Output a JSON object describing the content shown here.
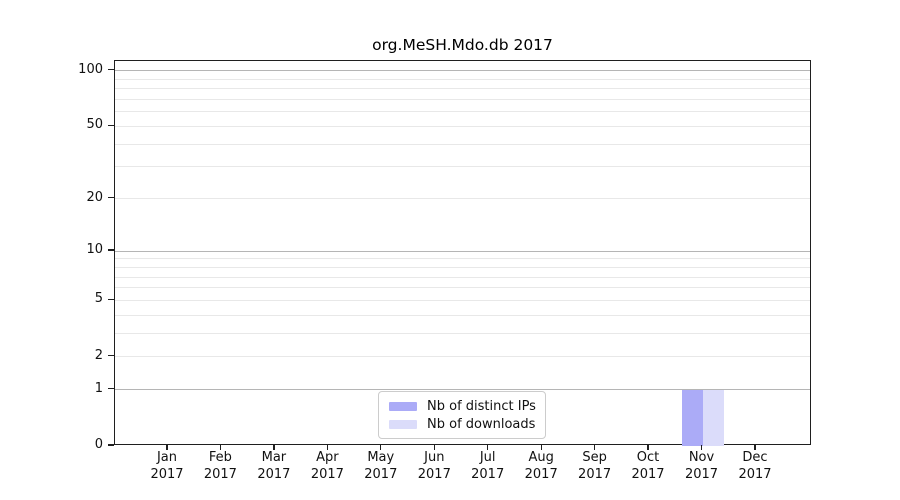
{
  "chart_data": {
    "type": "bar",
    "title": "org.MeSH.Mdo.db 2017",
    "categories": [
      "Jan 2017",
      "Feb 2017",
      "Mar 2017",
      "Apr 2017",
      "May 2017",
      "Jun 2017",
      "Jul 2017",
      "Aug 2017",
      "Sep 2017",
      "Oct 2017",
      "Nov 2017",
      "Dec 2017"
    ],
    "months": [
      "Jan",
      "Feb",
      "Mar",
      "Apr",
      "May",
      "Jun",
      "Jul",
      "Aug",
      "Sep",
      "Oct",
      "Nov",
      "Dec"
    ],
    "year_label": "2017",
    "series": [
      {
        "name": "Nb of distinct IPs",
        "color": "#ababf7",
        "values": [
          0,
          0,
          0,
          0,
          0,
          0,
          0,
          0,
          0,
          0,
          1,
          0
        ]
      },
      {
        "name": "Nb of downloads",
        "color": "#dbdcfa",
        "values": [
          0,
          0,
          0,
          0,
          0,
          0,
          0,
          0,
          0,
          0,
          1,
          0
        ]
      }
    ],
    "y_axis": {
      "scale": "log1p",
      "tick_values": [
        0,
        1,
        2,
        5,
        10,
        20,
        50,
        100
      ],
      "tick_labels": [
        "0",
        "1",
        "2",
        "5",
        "10",
        "20",
        "50",
        "100"
      ],
      "range": [
        0,
        113
      ],
      "grid_major_values": [
        1,
        10,
        100
      ],
      "grid_minor_values": [
        2,
        3,
        4,
        5,
        6,
        7,
        8,
        9,
        20,
        30,
        40,
        50,
        60,
        70,
        80,
        90
      ]
    },
    "legend": {
      "position": "bottom-center",
      "entries": [
        "Nb of distinct IPs",
        "Nb of downloads"
      ]
    },
    "grid": true
  },
  "colors": {
    "background": "#ffffff",
    "spine": "#1f1f1f",
    "grid_major": "#b5b5b5",
    "grid_minor": "#e8e8e8",
    "text": "#111111",
    "bar_distinct_ips": "#ababf7",
    "bar_downloads": "#dbdcfa"
  }
}
